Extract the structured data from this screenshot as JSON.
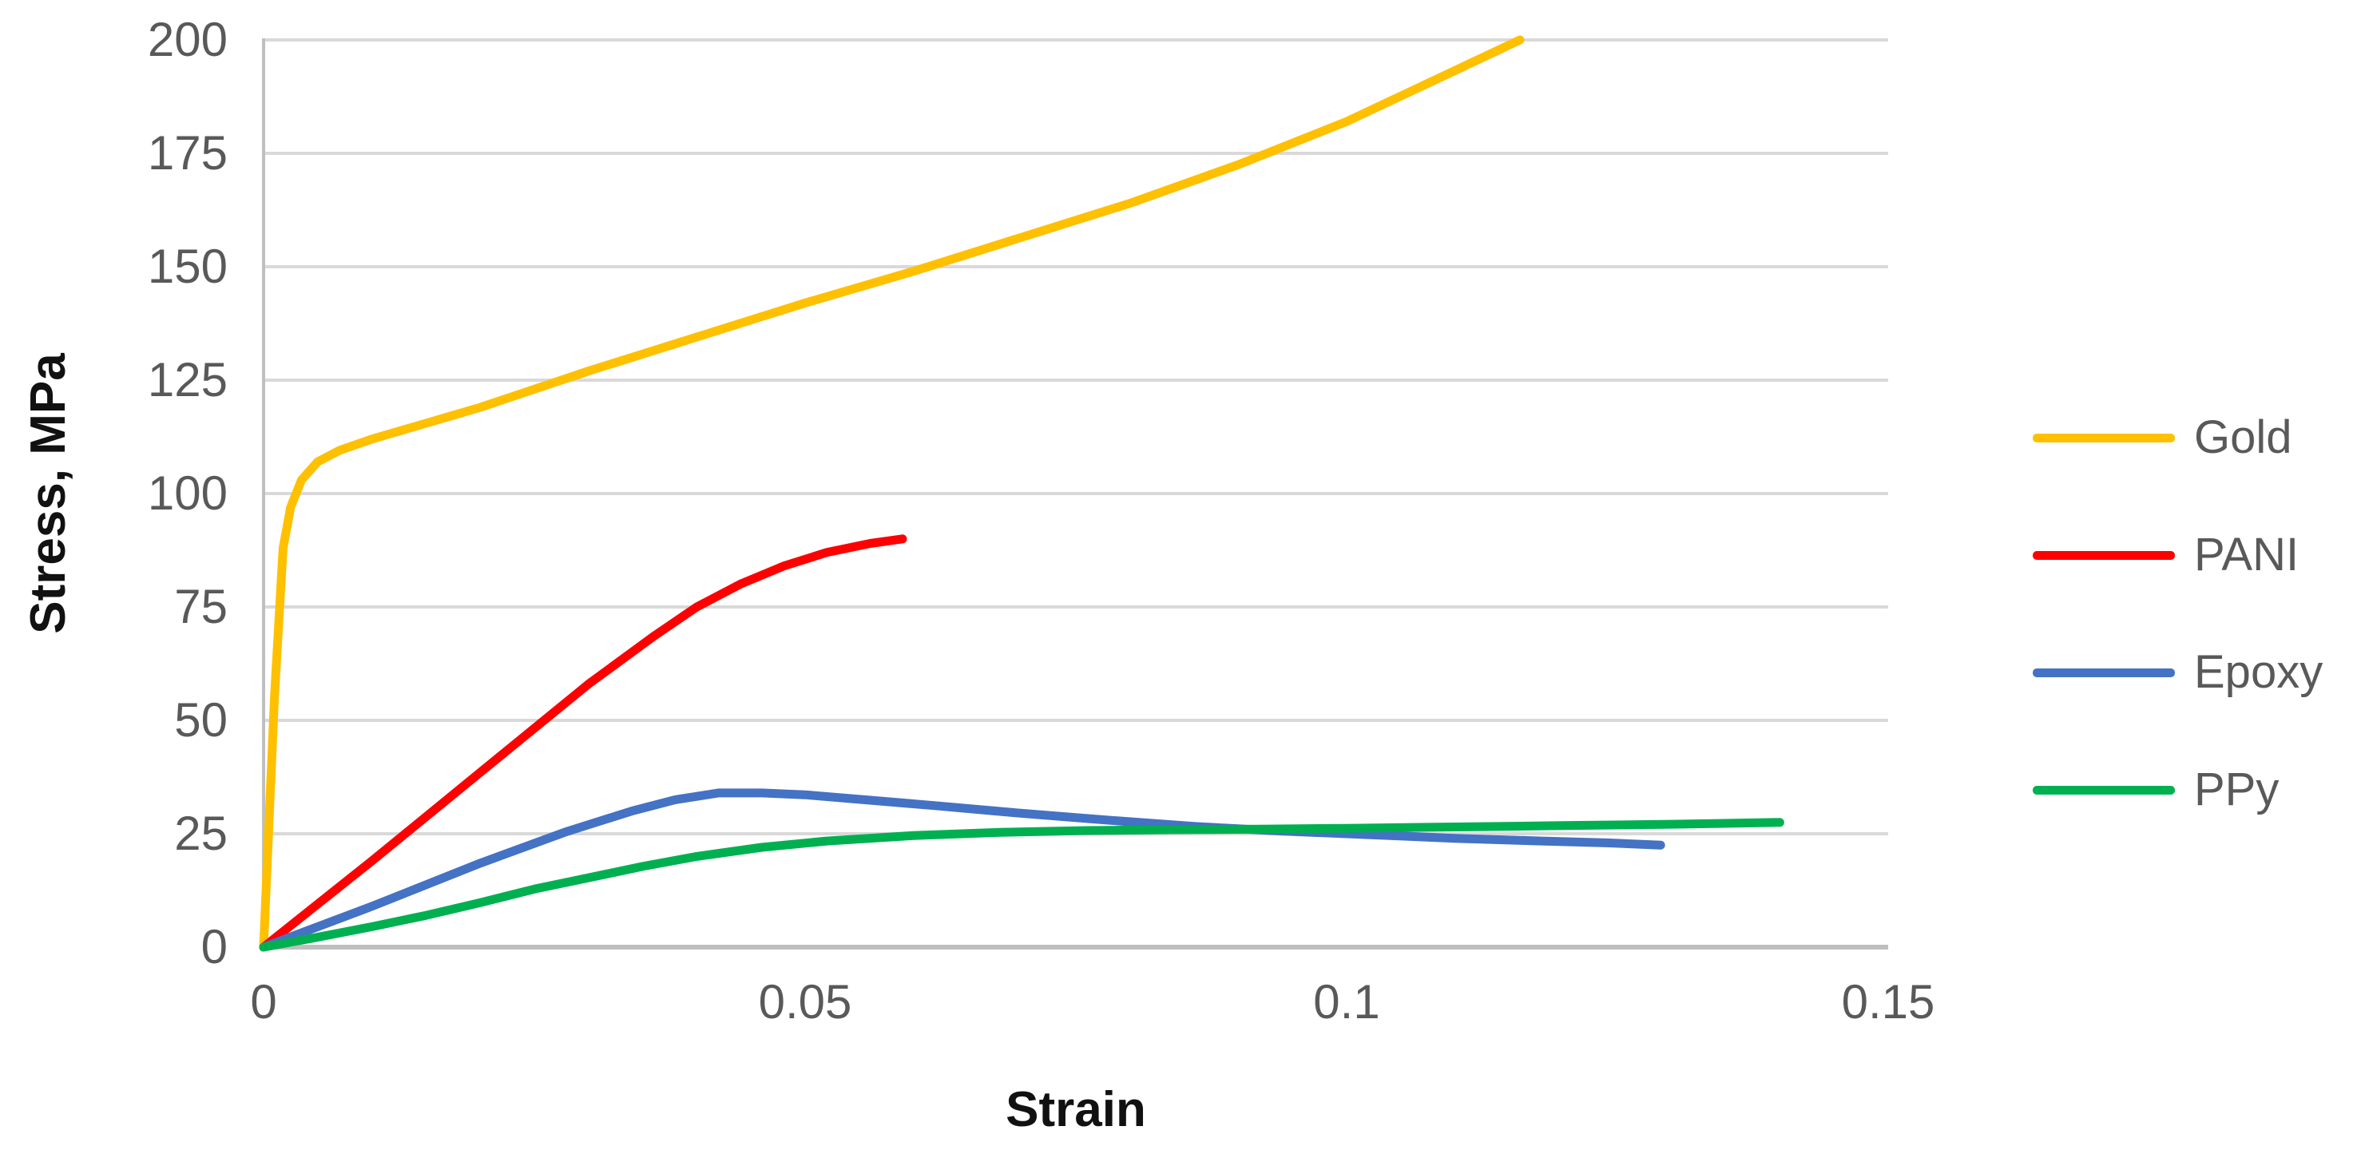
{
  "chart_data": {
    "type": "line",
    "title": "",
    "xlabel": "Strain",
    "ylabel": "Stress, MPa",
    "xlim": [
      0,
      0.15
    ],
    "ylim": [
      0,
      200
    ],
    "grid": "horizontal-only",
    "legend_position": "right",
    "background": "#ffffff",
    "gridline_color": "#d9d9d9",
    "axis_line_color": "#bfbfbf",
    "tick_label_color": "#595959",
    "axis_title_color": "#111111",
    "x_ticks": {
      "values": [
        0,
        0.05,
        0.1,
        0.15
      ],
      "labels": [
        "0",
        "0.05",
        "0.1",
        "0.15"
      ]
    },
    "y_ticks": {
      "values": [
        0,
        25,
        50,
        75,
        100,
        125,
        150,
        175,
        200
      ],
      "labels": [
        "0",
        "25",
        "50",
        "75",
        "100",
        "125",
        "150",
        "175",
        "200"
      ]
    },
    "series": [
      {
        "name": "Gold",
        "color": "#FFC000",
        "points": [
          [
            0,
            0
          ],
          [
            0.001,
            55
          ],
          [
            0.0018,
            88
          ],
          [
            0.0025,
            97
          ],
          [
            0.0035,
            103
          ],
          [
            0.005,
            107
          ],
          [
            0.007,
            109.5
          ],
          [
            0.01,
            112
          ],
          [
            0.015,
            115.5
          ],
          [
            0.02,
            119
          ],
          [
            0.03,
            127
          ],
          [
            0.04,
            134.5
          ],
          [
            0.05,
            142
          ],
          [
            0.06,
            149
          ],
          [
            0.07,
            156.5
          ],
          [
            0.08,
            164
          ],
          [
            0.09,
            172.5
          ],
          [
            0.1,
            182
          ],
          [
            0.108,
            191
          ],
          [
            0.116,
            200
          ]
        ]
      },
      {
        "name": "PANI",
        "color": "#FF0000",
        "points": [
          [
            0,
            0
          ],
          [
            0.01,
            19
          ],
          [
            0.02,
            38.5
          ],
          [
            0.03,
            58
          ],
          [
            0.036,
            68.5
          ],
          [
            0.04,
            75
          ],
          [
            0.044,
            80
          ],
          [
            0.048,
            84
          ],
          [
            0.052,
            87
          ],
          [
            0.056,
            89
          ],
          [
            0.059,
            90
          ]
        ]
      },
      {
        "name": "Epoxy",
        "color": "#4472C4",
        "points": [
          [
            0,
            0
          ],
          [
            0.01,
            9
          ],
          [
            0.02,
            18.5
          ],
          [
            0.028,
            25.5
          ],
          [
            0.034,
            30
          ],
          [
            0.038,
            32.5
          ],
          [
            0.042,
            34
          ],
          [
            0.046,
            34
          ],
          [
            0.05,
            33.6
          ],
          [
            0.056,
            32.4
          ],
          [
            0.062,
            31.2
          ],
          [
            0.07,
            29.5
          ],
          [
            0.078,
            28
          ],
          [
            0.086,
            26.6
          ],
          [
            0.094,
            25.6
          ],
          [
            0.102,
            24.8
          ],
          [
            0.11,
            24
          ],
          [
            0.118,
            23.4
          ],
          [
            0.124,
            23
          ],
          [
            0.129,
            22.5
          ]
        ]
      },
      {
        "name": "PPy",
        "color": "#00B050",
        "points": [
          [
            0,
            0
          ],
          [
            0.005,
            2.2
          ],
          [
            0.01,
            4.5
          ],
          [
            0.015,
            7
          ],
          [
            0.02,
            9.8
          ],
          [
            0.025,
            12.8
          ],
          [
            0.03,
            15.3
          ],
          [
            0.035,
            17.8
          ],
          [
            0.04,
            20
          ],
          [
            0.046,
            22
          ],
          [
            0.052,
            23.4
          ],
          [
            0.06,
            24.6
          ],
          [
            0.068,
            25.3
          ],
          [
            0.076,
            25.7
          ],
          [
            0.084,
            25.9
          ],
          [
            0.092,
            26
          ],
          [
            0.1,
            26.2
          ],
          [
            0.11,
            26.5
          ],
          [
            0.12,
            26.8
          ],
          [
            0.13,
            27.1
          ],
          [
            0.14,
            27.5
          ]
        ]
      }
    ]
  }
}
